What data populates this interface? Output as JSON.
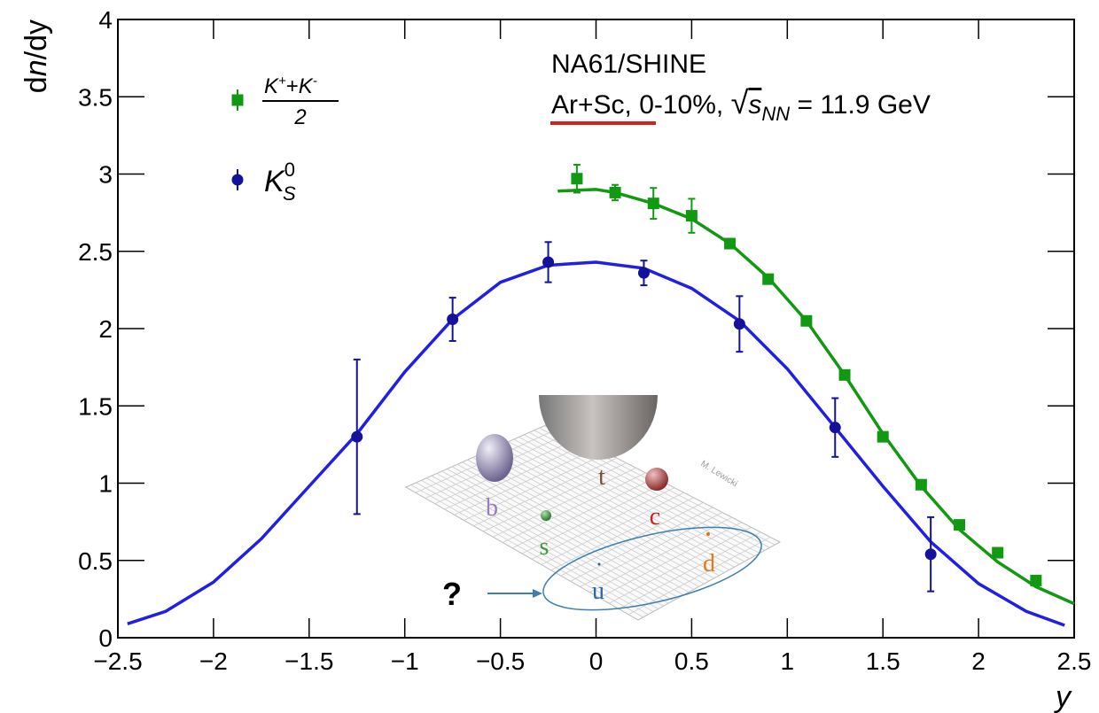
{
  "chart_data": {
    "type": "scatter",
    "y_label": {
      "prefix": "d",
      "italic": "n",
      "suffix": "/dy"
    },
    "x_label": "y",
    "annotation_title": "NA61/SHINE",
    "annotation_system": {
      "text": "Ar+Sc, 0-10%, ",
      "root": "√",
      "s": "s",
      "sub": "NN",
      "energy": " = 11.9 GeV"
    },
    "xlim": [
      -2.5,
      2.5
    ],
    "ylim": [
      0,
      4
    ],
    "xticks": [
      {
        "value": -2.5,
        "label": "−2.5"
      },
      {
        "value": -2,
        "label": "−2"
      },
      {
        "value": -1.5,
        "label": "−1.5"
      },
      {
        "value": -1,
        "label": "−1"
      },
      {
        "value": -0.5,
        "label": "−0.5"
      },
      0,
      0.5,
      1,
      1.5,
      2,
      2.5
    ],
    "yticks": [
      0,
      0.5,
      1,
      1.5,
      2,
      2.5,
      3,
      3.5,
      4
    ],
    "series": [
      {
        "name": {
          "numerator_k1": "K",
          "sup1": "+",
          "plus": "+",
          "numerator_k2": "K",
          "sup2": "-",
          "denominator": "2"
        },
        "marker": "square",
        "color": "#129912",
        "x": [
          -0.1,
          0.1,
          0.3,
          0.5,
          0.7,
          0.9,
          1.1,
          1.3,
          1.5,
          1.7,
          1.9,
          2.1,
          2.3
        ],
        "values": [
          2.97,
          2.88,
          2.81,
          2.73,
          2.55,
          2.32,
          2.05,
          1.7,
          1.3,
          0.99,
          0.73,
          0.55,
          0.37
        ],
        "errors": [
          0.09,
          0.05,
          0.1,
          0.11,
          0.03,
          0.03,
          0.02,
          0.02,
          0.02,
          0.02,
          0.02,
          0.02,
          0.02
        ]
      },
      {
        "name": {
          "k": "K",
          "sup": "0",
          "sub": "S"
        },
        "marker": "circle",
        "color": "#12129a",
        "x": [
          -1.25,
          -0.75,
          -0.25,
          0.25,
          0.75,
          1.25,
          1.75
        ],
        "values": [
          1.3,
          2.06,
          2.43,
          2.36,
          2.03,
          1.36,
          0.54
        ],
        "errors": [
          0.5,
          0.14,
          0.13,
          0.08,
          0.18,
          0.19,
          0.24
        ]
      }
    ],
    "fits": [
      {
        "color": "#129912",
        "x": [
          -0.2,
          0,
          0.1,
          0.3,
          0.5,
          0.7,
          0.9,
          1.1,
          1.3,
          1.5,
          1.7,
          1.9,
          2.1,
          2.3,
          2.5
        ],
        "values": [
          2.89,
          2.9,
          2.88,
          2.81,
          2.71,
          2.55,
          2.33,
          2.05,
          1.7,
          1.32,
          0.98,
          0.7,
          0.49,
          0.33,
          0.22
        ]
      },
      {
        "color": "#1f1fe6",
        "x": [
          -2.45,
          -2.25,
          -2,
          -1.75,
          -1.5,
          -1.25,
          -1,
          -0.75,
          -0.5,
          -0.25,
          0,
          0.25,
          0.5,
          0.75,
          1,
          1.25,
          1.5,
          1.75,
          2,
          2.25,
          2.45
        ],
        "values": [
          0.09,
          0.17,
          0.36,
          0.64,
          0.98,
          1.32,
          1.72,
          2.06,
          2.3,
          2.41,
          2.43,
          2.39,
          2.26,
          2.05,
          1.74,
          1.36,
          0.98,
          0.62,
          0.35,
          0.17,
          0.08
        ]
      }
    ],
    "inset": {
      "labels": [
        "b",
        "t",
        "c",
        "s",
        "u",
        "d"
      ],
      "question": "?",
      "credit": "M. Lewicki"
    }
  }
}
